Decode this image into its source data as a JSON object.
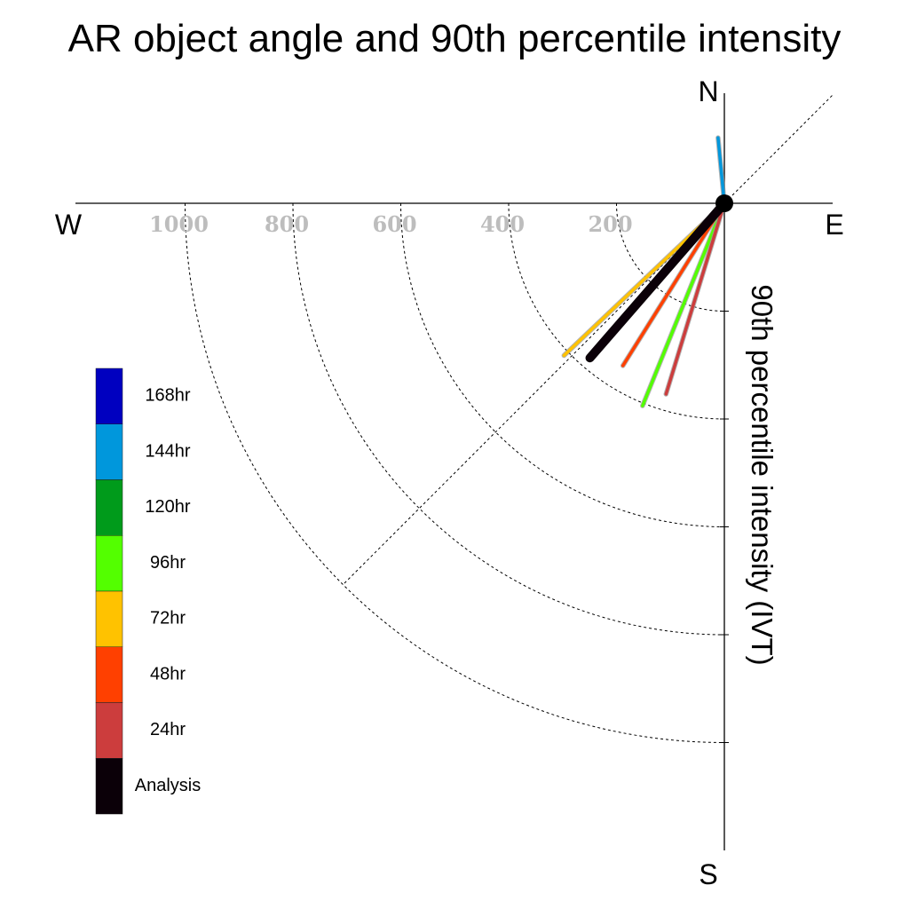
{
  "chart_data": {
    "type": "polar-vector",
    "title": "AR object angle and 90th percentile intensity",
    "radial_label": "90th percentile intensity (IVT)",
    "compass": {
      "north": "N",
      "south": "S",
      "east": "E",
      "west": "W"
    },
    "radial_ticks": [
      200,
      400,
      600,
      800,
      1000
    ],
    "radial_range": [
      0,
      1000
    ],
    "grid": true,
    "legend_position": "left",
    "series": [
      {
        "name": "168hr",
        "color": "#0000c0",
        "angle_deg": null,
        "intensity": null
      },
      {
        "name": "144hr",
        "color": "#0097dc",
        "angle_deg": 95.5,
        "intensity": 122
      },
      {
        "name": "120hr",
        "color": "#009b1b",
        "angle_deg": null,
        "intensity": null
      },
      {
        "name": "96hr",
        "color": "#53ff00",
        "angle_deg": -112,
        "intensity": 405
      },
      {
        "name": "72hr",
        "color": "#ffc200",
        "angle_deg": -136.5,
        "intensity": 410
      },
      {
        "name": "48hr",
        "color": "#ff4000",
        "angle_deg": -122,
        "intensity": 355
      },
      {
        "name": "24hr",
        "color": "#cc3d3d",
        "angle_deg": -107,
        "intensity": 370
      },
      {
        "name": "Analysis",
        "color": "#0b0008",
        "angle_deg": -131,
        "intensity": 380
      }
    ]
  }
}
